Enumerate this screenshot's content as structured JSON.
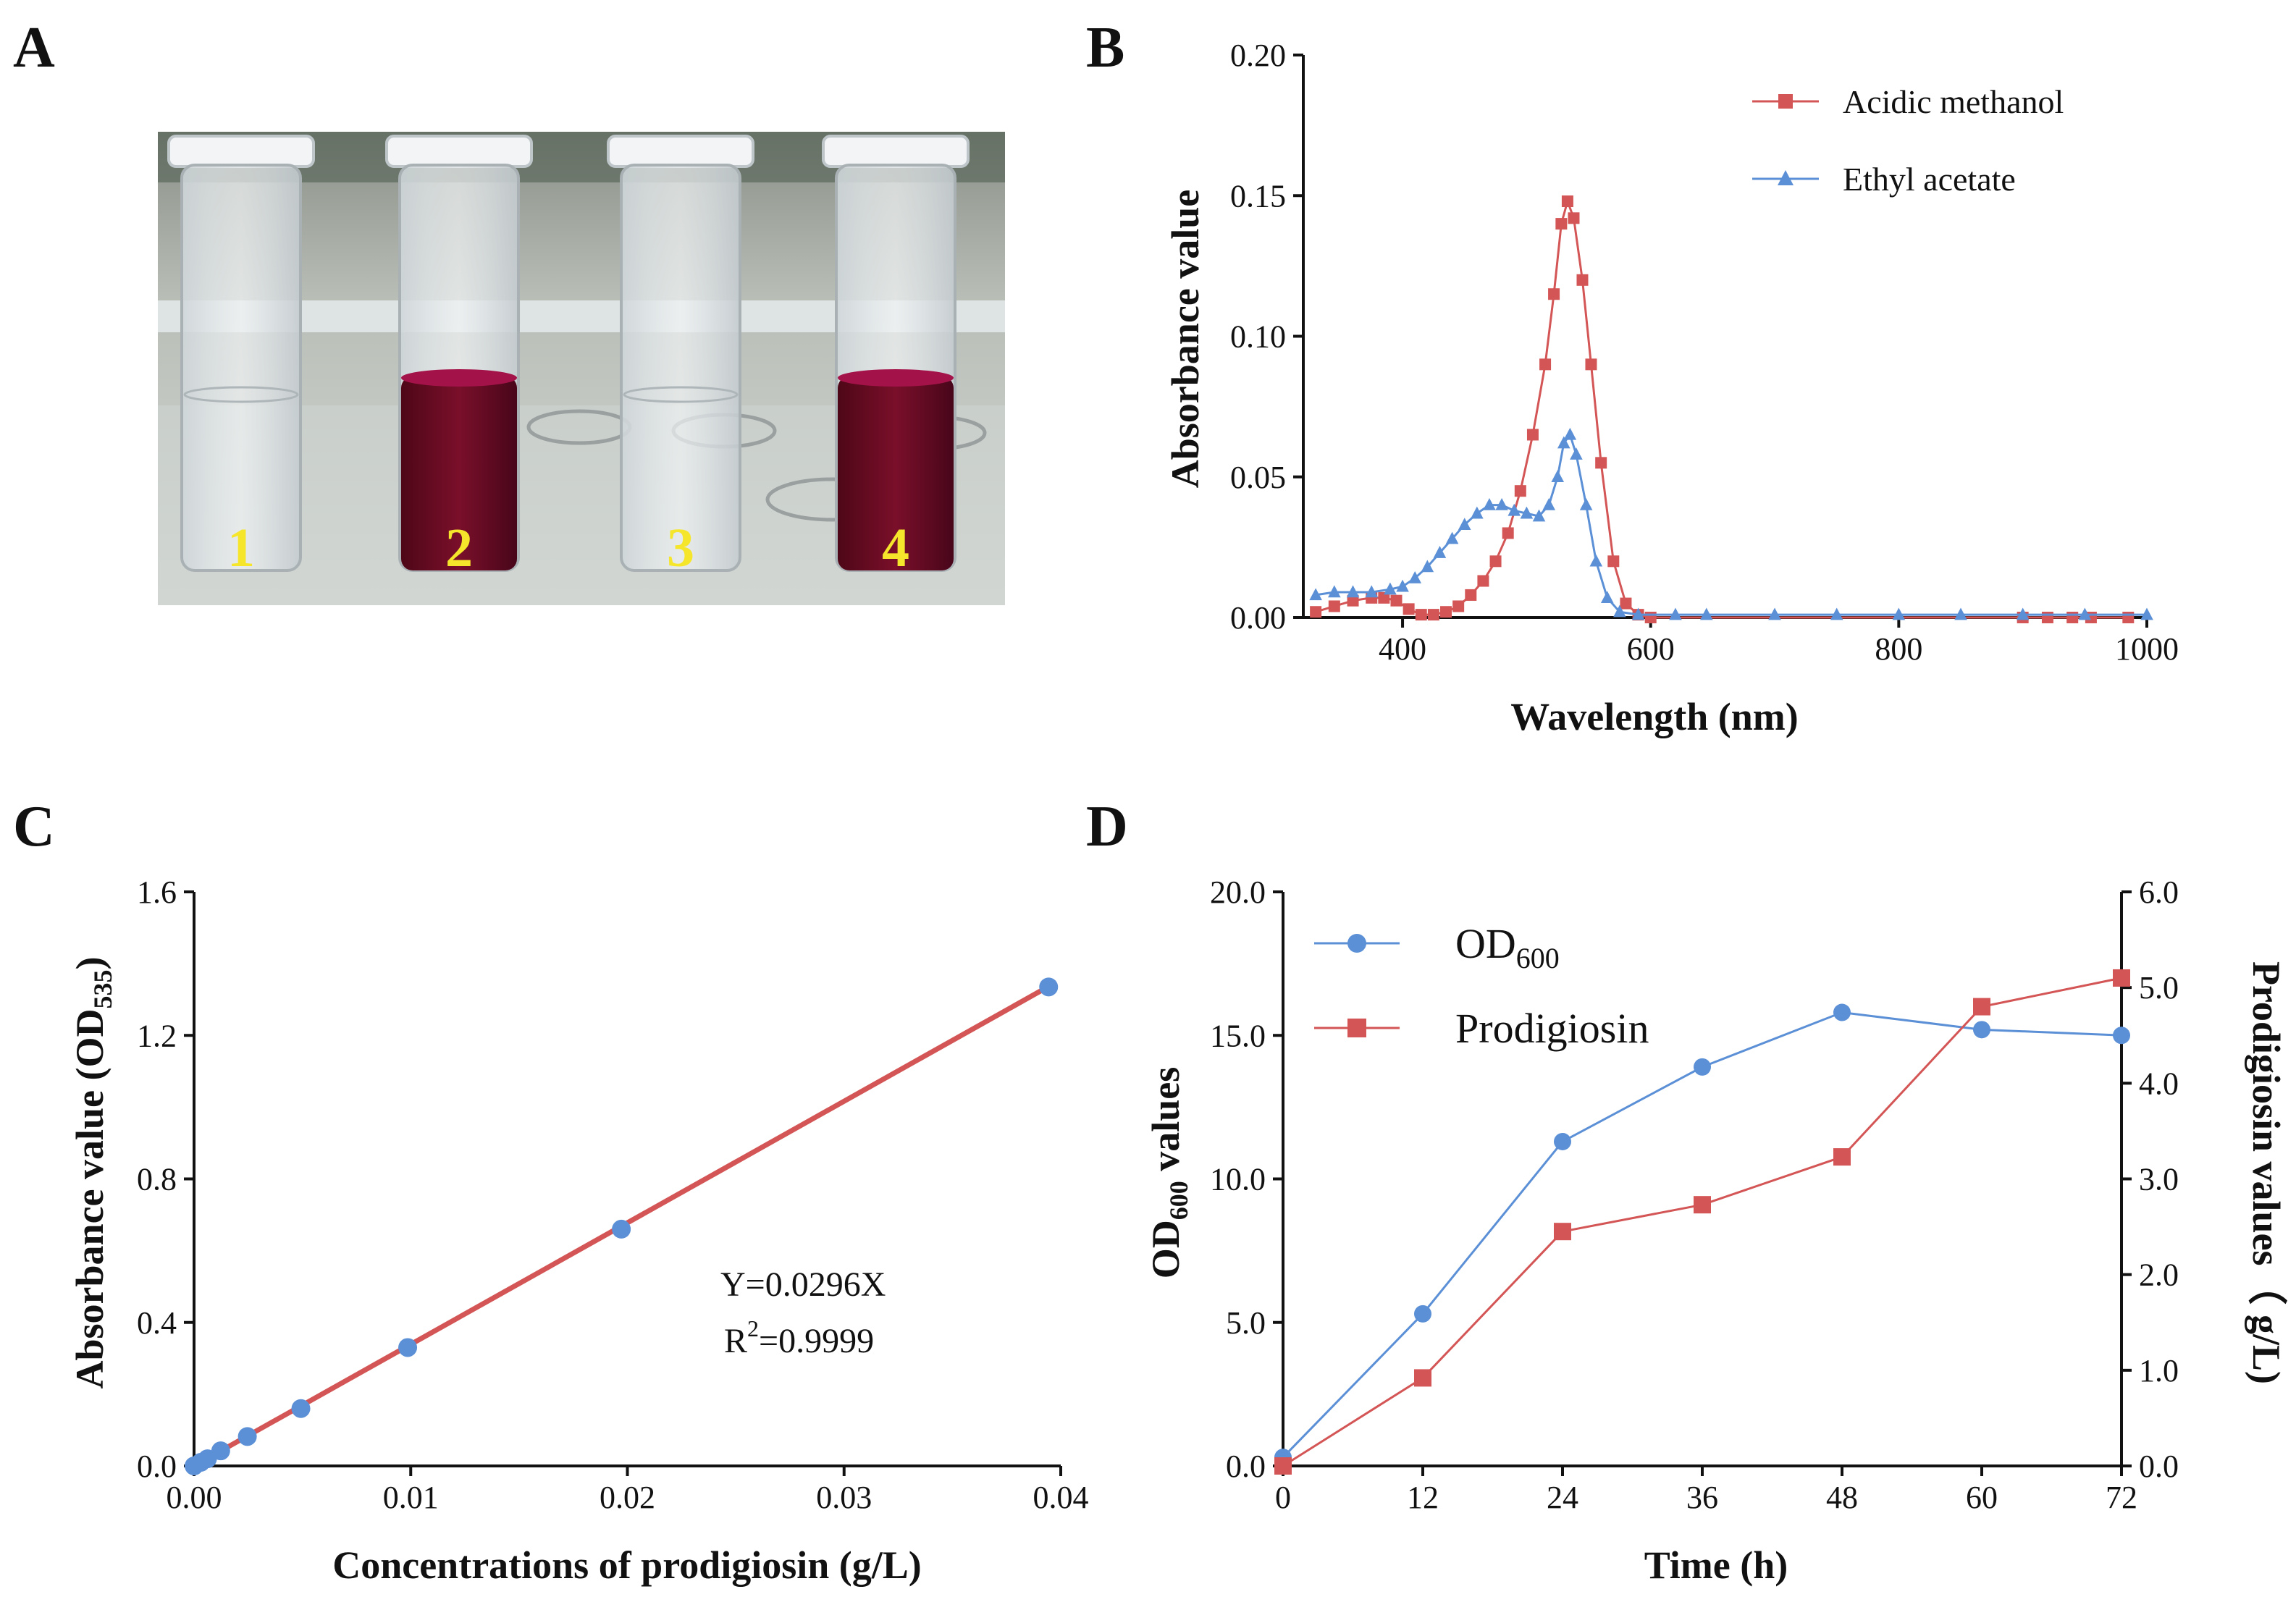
{
  "colors": {
    "red": "#d45555",
    "blue": "#5b8fd6",
    "ink": "#111111",
    "tube_label": "#f5e62c",
    "pigment": "#6e0a22"
  },
  "panels": {
    "A": {
      "letter": "A",
      "photo": {
        "tube_labels": [
          "1",
          "2",
          "3",
          "4"
        ],
        "tube_filled": [
          false,
          true,
          false,
          true
        ]
      }
    },
    "B": {
      "letter": "B",
      "chart_data": {
        "type": "line",
        "title": "",
        "xlabel": "Wavelength (nm)",
        "ylabel": "Absorbance value",
        "xlim": [
          320,
          1000
        ],
        "ylim": [
          0,
          0.2
        ],
        "xticks": [
          400,
          600,
          800,
          1000
        ],
        "yticks": [
          0.0,
          0.05,
          0.1,
          0.15,
          0.2
        ],
        "ytick_labels": [
          "0.00",
          "0.05",
          "0.10",
          "0.15",
          "0.20"
        ],
        "legend_position": "top-right",
        "series": [
          {
            "name": "Acidic methanol",
            "color": "#d45555",
            "marker": "square",
            "x": [
              330,
              345,
              360,
              375,
              385,
              395,
              405,
              415,
              425,
              435,
              445,
              455,
              465,
              475,
              485,
              495,
              505,
              515,
              522,
              528,
              533,
              538,
              545,
              552,
              560,
              570,
              580,
              590,
              600,
              900,
              920,
              940,
              955,
              985
            ],
            "y": [
              0.002,
              0.004,
              0.006,
              0.007,
              0.007,
              0.006,
              0.003,
              0.001,
              0.001,
              0.002,
              0.004,
              0.008,
              0.013,
              0.02,
              0.03,
              0.045,
              0.065,
              0.09,
              0.115,
              0.14,
              0.148,
              0.142,
              0.12,
              0.09,
              0.055,
              0.02,
              0.005,
              0.001,
              0.0,
              0.0,
              0.0,
              0.0,
              0.0,
              0.0
            ]
          },
          {
            "name": "Ethyl acetate",
            "color": "#5b8fd6",
            "marker": "triangle",
            "x": [
              330,
              345,
              360,
              375,
              390,
              400,
              410,
              420,
              430,
              440,
              450,
              460,
              470,
              480,
              490,
              500,
              510,
              518,
              525,
              530,
              535,
              540,
              548,
              556,
              565,
              575,
              590,
              620,
              645,
              700,
              750,
              800,
              850,
              900,
              950,
              1000
            ],
            "y": [
              0.008,
              0.009,
              0.009,
              0.009,
              0.01,
              0.011,
              0.014,
              0.018,
              0.023,
              0.028,
              0.033,
              0.037,
              0.04,
              0.04,
              0.038,
              0.037,
              0.036,
              0.04,
              0.05,
              0.062,
              0.065,
              0.058,
              0.04,
              0.02,
              0.007,
              0.002,
              0.001,
              0.001,
              0.001,
              0.001,
              0.001,
              0.001,
              0.001,
              0.001,
              0.001,
              0.001
            ]
          }
        ]
      }
    },
    "C": {
      "letter": "C",
      "chart_data": {
        "type": "scatter",
        "title": "",
        "xlabel": "Concentrations of prodigiosin (g/L)",
        "ylabel_main": "Absorbance value (OD",
        "ylabel_sub": "535",
        "ylabel_close": ")",
        "xlim": [
          0,
          0.04
        ],
        "ylim": [
          0,
          1.6
        ],
        "xticks": [
          0,
          0.01,
          0.02,
          0.03,
          0.04
        ],
        "xtick_labels": [
          "0.00",
          "0.01",
          "0.02",
          "0.03",
          "0.04"
        ],
        "yticks": [
          0,
          0.4,
          0.8,
          1.2,
          1.6
        ],
        "ytick_labels": [
          "0.0",
          "0.4",
          "0.8",
          "1.2",
          "1.6"
        ],
        "points": {
          "x": [
            0.0,
            0.00031,
            0.00062,
            0.00123,
            0.00246,
            0.00493,
            0.00986,
            0.01972,
            0.03944
          ],
          "y": [
            0.0,
            0.01,
            0.02,
            0.042,
            0.082,
            0.16,
            0.33,
            0.66,
            1.335
          ]
        },
        "point_color": "#5b8fd6",
        "fit": {
          "x": [
            0.0,
            0.0394
          ],
          "y": [
            0.0,
            1.335
          ],
          "color": "#d45555"
        },
        "annotation_line1": "Y=0.0296X",
        "annotation_r_prefix": "R",
        "annotation_r_sup": "2",
        "annotation_r_value": "=0.9999"
      }
    },
    "D": {
      "letter": "D",
      "chart_data": {
        "type": "line",
        "title": "",
        "xlabel": "Time (h)",
        "ylabel_left_main": "OD",
        "ylabel_left_sub": "600",
        "ylabel_left_rest": " values",
        "ylabel_right": "Prodigiosin values（ g/L)",
        "x": [
          0,
          12,
          24,
          36,
          48,
          60,
          72
        ],
        "xlim": [
          0,
          72
        ],
        "xticks": [
          0,
          12,
          24,
          36,
          48,
          60,
          72
        ],
        "ylim_left": [
          0,
          20
        ],
        "yticks_left": [
          0,
          5,
          10,
          15,
          20
        ],
        "ytick_labels_left": [
          "0.0",
          "5.0",
          "10.0",
          "15.0",
          "20.0"
        ],
        "ylim_right": [
          0,
          6
        ],
        "yticks_right": [
          0,
          1,
          2,
          3,
          4,
          5,
          6
        ],
        "ytick_labels_right": [
          "0.0",
          "1.0",
          "2.0",
          "3.0",
          "4.0",
          "5.0",
          "6.0"
        ],
        "legend_position": "top-left",
        "series": [
          {
            "name_main": "OD",
            "name_sub": "600",
            "color": "#5b8fd6",
            "marker": "circle",
            "axis": "left",
            "values": [
              0.3,
              5.3,
              11.3,
              13.9,
              15.8,
              15.2,
              15.0
            ]
          },
          {
            "name_main": "Prodigiosin",
            "name_sub": "",
            "color": "#d45555",
            "marker": "square",
            "axis": "right",
            "values": [
              0.0,
              0.92,
              2.45,
              2.73,
              3.23,
              4.8,
              5.1
            ]
          }
        ]
      }
    }
  }
}
